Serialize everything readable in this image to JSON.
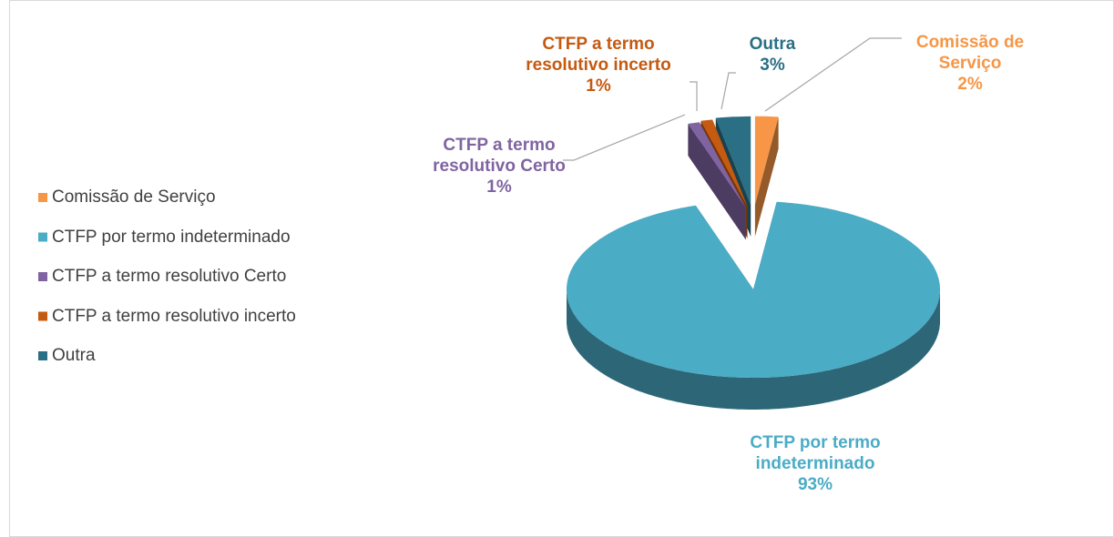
{
  "chart_data": {
    "type": "pie",
    "categories": [
      "Comissão de Serviço",
      "CTFP por termo indeterminado",
      "CTFP a termo resolutivo Certo",
      "CTFP a termo resolutivo incerto",
      "Outra"
    ],
    "values": [
      2,
      93,
      1,
      1,
      3
    ],
    "value_labels": [
      "2%",
      "93%",
      "1%",
      "1%",
      "3%"
    ],
    "colors": [
      "#f79646",
      "#4bacc6",
      "#8064a2",
      "#c55a11",
      "#2a6f84"
    ],
    "legend": "left"
  }
}
